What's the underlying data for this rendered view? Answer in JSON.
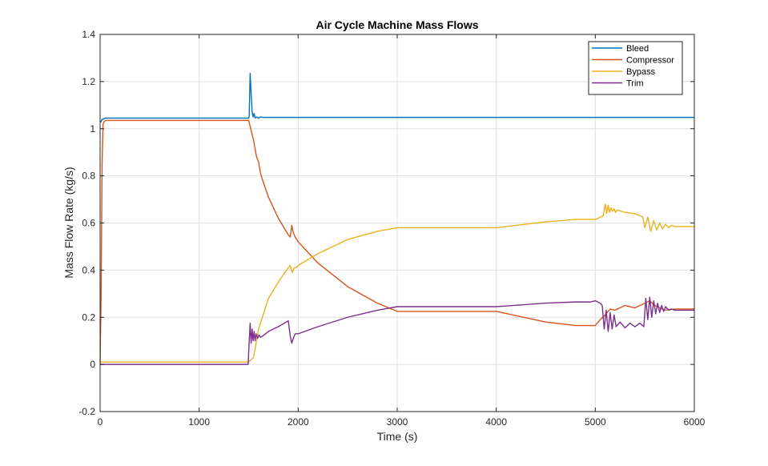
{
  "chart_data": {
    "type": "line",
    "title": "Air Cycle Machine Mass Flows",
    "xlabel": "Time (s)",
    "ylabel": "Mass Flow Rate (kg/s)",
    "xlim": [
      0,
      6000
    ],
    "ylim": [
      -0.2,
      1.4
    ],
    "xticks": [
      0,
      1000,
      2000,
      3000,
      4000,
      5000,
      6000
    ],
    "yticks": [
      -0.2,
      0,
      0.2,
      0.4,
      0.6,
      0.8,
      1,
      1.2,
      1.4
    ],
    "xtick_labels": [
      "0",
      "1000",
      "2000",
      "3000",
      "4000",
      "5000",
      "6000"
    ],
    "ytick_labels": [
      "-0.2",
      "0",
      "0.2",
      "0.4",
      "0.6",
      "0.8",
      "1",
      "1.2",
      "1.4"
    ],
    "grid": true,
    "legend_position": "top-right",
    "series": [
      {
        "name": "Bleed",
        "color": "#0072BD",
        "x": [
          0,
          10,
          20,
          30,
          50,
          100,
          500,
          1000,
          1500,
          1505,
          1515,
          1525,
          1535,
          1545,
          1555,
          1565,
          1580,
          1600,
          1620,
          1650,
          1700,
          2000,
          3000,
          4000,
          5000,
          6000
        ],
        "y": [
          1.03,
          1.03,
          1.04,
          1.04,
          1.045,
          1.045,
          1.045,
          1.045,
          1.045,
          1.05,
          1.235,
          1.15,
          1.07,
          1.05,
          1.065,
          1.045,
          1.05,
          1.045,
          1.05,
          1.048,
          1.048,
          1.048,
          1.048,
          1.048,
          1.048,
          1.048
        ]
      },
      {
        "name": "Compressor",
        "color": "#D95319",
        "x": [
          0,
          10,
          20,
          30,
          40,
          60,
          100,
          500,
          1000,
          1500,
          1550,
          1580,
          1600,
          1620,
          1650,
          1700,
          1800,
          1900,
          1920,
          1935,
          1950,
          1970,
          2000,
          2200,
          2500,
          2800,
          3000,
          3500,
          4000,
          4500,
          4800,
          5000,
          5050,
          5100,
          5150,
          5200,
          5300,
          5400,
          5500,
          5550,
          5600,
          5700,
          5800,
          6000
        ],
        "y": [
          0.0,
          0.3,
          0.85,
          1.02,
          1.03,
          1.035,
          1.035,
          1.035,
          1.035,
          1.035,
          0.95,
          0.88,
          0.86,
          0.81,
          0.77,
          0.71,
          0.62,
          0.55,
          0.54,
          0.59,
          0.56,
          0.54,
          0.52,
          0.43,
          0.33,
          0.26,
          0.225,
          0.225,
          0.225,
          0.18,
          0.165,
          0.165,
          0.19,
          0.21,
          0.235,
          0.23,
          0.25,
          0.24,
          0.26,
          0.27,
          0.25,
          0.23,
          0.235,
          0.235
        ]
      },
      {
        "name": "Bypass",
        "color": "#EDB120",
        "x": [
          0,
          50,
          500,
          1000,
          1500,
          1550,
          1600,
          1700,
          1800,
          1900,
          1920,
          1940,
          1960,
          1980,
          2000,
          2200,
          2500,
          2800,
          3000,
          3500,
          4000,
          4500,
          4800,
          5000,
          5080,
          5100,
          5115,
          5130,
          5145,
          5160,
          5175,
          5190,
          5205,
          5220,
          5300,
          5400,
          5480,
          5500,
          5530,
          5560,
          5590,
          5620,
          5650,
          5680,
          5710,
          5740,
          5770,
          5800,
          6000
        ],
        "y": [
          0.01,
          0.01,
          0.01,
          0.01,
          0.01,
          0.03,
          0.15,
          0.28,
          0.35,
          0.41,
          0.42,
          0.39,
          0.41,
          0.41,
          0.42,
          0.47,
          0.53,
          0.565,
          0.58,
          0.58,
          0.58,
          0.605,
          0.615,
          0.615,
          0.63,
          0.68,
          0.64,
          0.675,
          0.645,
          0.665,
          0.65,
          0.66,
          0.645,
          0.655,
          0.645,
          0.64,
          0.625,
          0.58,
          0.625,
          0.565,
          0.61,
          0.57,
          0.6,
          0.575,
          0.595,
          0.58,
          0.59,
          0.585,
          0.585
        ]
      },
      {
        "name": "Trim",
        "color": "#7E2F8E",
        "x": [
          0,
          500,
          1000,
          1495,
          1500,
          1515,
          1525,
          1535,
          1545,
          1555,
          1565,
          1575,
          1590,
          1605,
          1620,
          1640,
          1700,
          1800,
          1900,
          1920,
          1935,
          1950,
          1970,
          2000,
          2200,
          2500,
          2800,
          3000,
          3500,
          4000,
          4500,
          4800,
          4950,
          5000,
          5050,
          5070,
          5090,
          5110,
          5130,
          5150,
          5170,
          5190,
          5210,
          5250,
          5300,
          5350,
          5400,
          5450,
          5490,
          5510,
          5530,
          5550,
          5570,
          5590,
          5610,
          5630,
          5650,
          5670,
          5690,
          5710,
          5740,
          5770,
          5800,
          6000
        ],
        "y": [
          0.0,
          0.0,
          0.0,
          0.0,
          0.05,
          0.175,
          0.09,
          0.15,
          0.1,
          0.14,
          0.1,
          0.13,
          0.11,
          0.125,
          0.115,
          0.12,
          0.14,
          0.16,
          0.185,
          0.12,
          0.09,
          0.11,
          0.13,
          0.13,
          0.16,
          0.2,
          0.23,
          0.245,
          0.245,
          0.245,
          0.26,
          0.265,
          0.265,
          0.27,
          0.26,
          0.25,
          0.15,
          0.23,
          0.14,
          0.22,
          0.15,
          0.21,
          0.16,
          0.18,
          0.155,
          0.175,
          0.16,
          0.175,
          0.16,
          0.28,
          0.19,
          0.285,
          0.2,
          0.27,
          0.215,
          0.26,
          0.22,
          0.25,
          0.225,
          0.245,
          0.23,
          0.235,
          0.23,
          0.23
        ]
      }
    ]
  }
}
